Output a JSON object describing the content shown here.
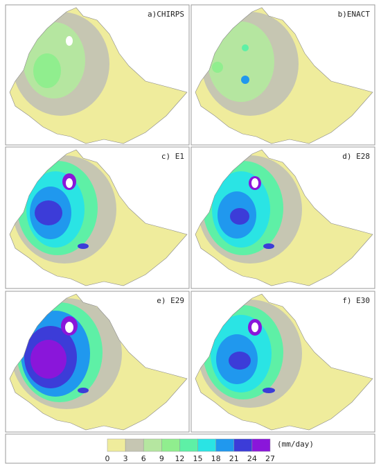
{
  "panels": [
    "a)CHIRPS",
    "b)ENACT",
    "c) E1",
    "d) E28",
    "e) E29",
    "f) E30"
  ],
  "colorbar": {
    "colors": [
      "#efec9c",
      "#c6c6b2",
      "#b5e6a0",
      "#90ee8e",
      "#5ef0a6",
      "#2ae4e4",
      "#2098ee",
      "#3c3cd8",
      "#8a16da"
    ],
    "ticks": [
      0,
      3,
      6,
      9,
      12,
      15,
      18,
      21,
      24,
      27
    ],
    "unit": "(mm/day)"
  }
}
